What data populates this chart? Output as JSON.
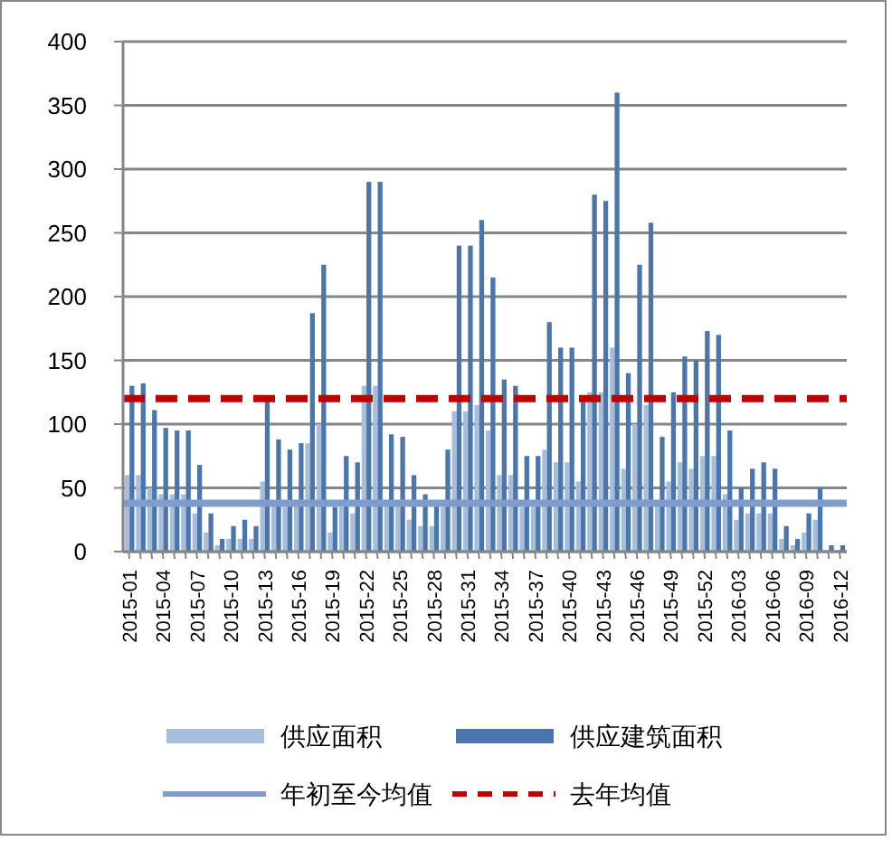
{
  "chart_data": {
    "type": "bar",
    "categories": [
      "2015-01",
      null,
      null,
      "2015-04",
      null,
      null,
      "2015-07",
      null,
      null,
      "2015-10",
      null,
      null,
      "2015-13",
      null,
      null,
      "2015-16",
      null,
      null,
      "2015-19",
      null,
      null,
      "2015-22",
      null,
      null,
      "2015-25",
      null,
      null,
      "2015-28",
      null,
      null,
      "2015-31",
      null,
      null,
      "2015-34",
      null,
      null,
      "2015-37",
      null,
      null,
      "2015-40",
      null,
      null,
      "2015-43",
      null,
      null,
      "2015-46",
      null,
      null,
      "2015-49",
      null,
      null,
      "2015-52",
      null,
      null,
      "2016-03",
      null,
      null,
      "2016-06",
      null,
      null,
      "2016-09",
      null,
      null,
      "2016-12"
    ],
    "series": [
      {
        "name": "供应面积",
        "color": "#a6bddb",
        "values": [
          60,
          60,
          50,
          45,
          45,
          45,
          30,
          15,
          5,
          10,
          10,
          10,
          55,
          40,
          35,
          40,
          85,
          100,
          15,
          35,
          30,
          130,
          130,
          40,
          40,
          25,
          20,
          20,
          35,
          110,
          110,
          115,
          95,
          60,
          60,
          35,
          35,
          80,
          70,
          70,
          55,
          125,
          125,
          160,
          65,
          100,
          115,
          40,
          55,
          70,
          65,
          75,
          75,
          45,
          25,
          30,
          30,
          30,
          10,
          5,
          15,
          25,
          null,
          null
        ]
      },
      {
        "name": "供应建筑面积",
        "color": "#4a76ac",
        "values": [
          130,
          132,
          111,
          97,
          95,
          95,
          68,
          30,
          10,
          20,
          25,
          20,
          120,
          88,
          80,
          85,
          187,
          225,
          35,
          75,
          70,
          290,
          290,
          92,
          90,
          60,
          45,
          40,
          80,
          240,
          240,
          260,
          215,
          135,
          130,
          75,
          75,
          180,
          160,
          160,
          120,
          280,
          275,
          360,
          140,
          225,
          258,
          90,
          125,
          153,
          150,
          173,
          170,
          95,
          50,
          65,
          70,
          65,
          20,
          10,
          30,
          50,
          5,
          5
        ]
      }
    ],
    "ylim": [
      0,
      400
    ],
    "yticks": [
      0,
      50,
      100,
      150,
      200,
      250,
      300,
      350,
      400
    ],
    "grid": "y",
    "legend": "bottom",
    "ref_lines": [
      {
        "axis": "y",
        "value": 38,
        "label": "年初至今均值",
        "color": "#7f9ccb",
        "line_style": "solid"
      },
      {
        "axis": "y",
        "value": 120,
        "label": "去年均值",
        "color": "#c00000",
        "line_style": "dashed"
      }
    ]
  }
}
